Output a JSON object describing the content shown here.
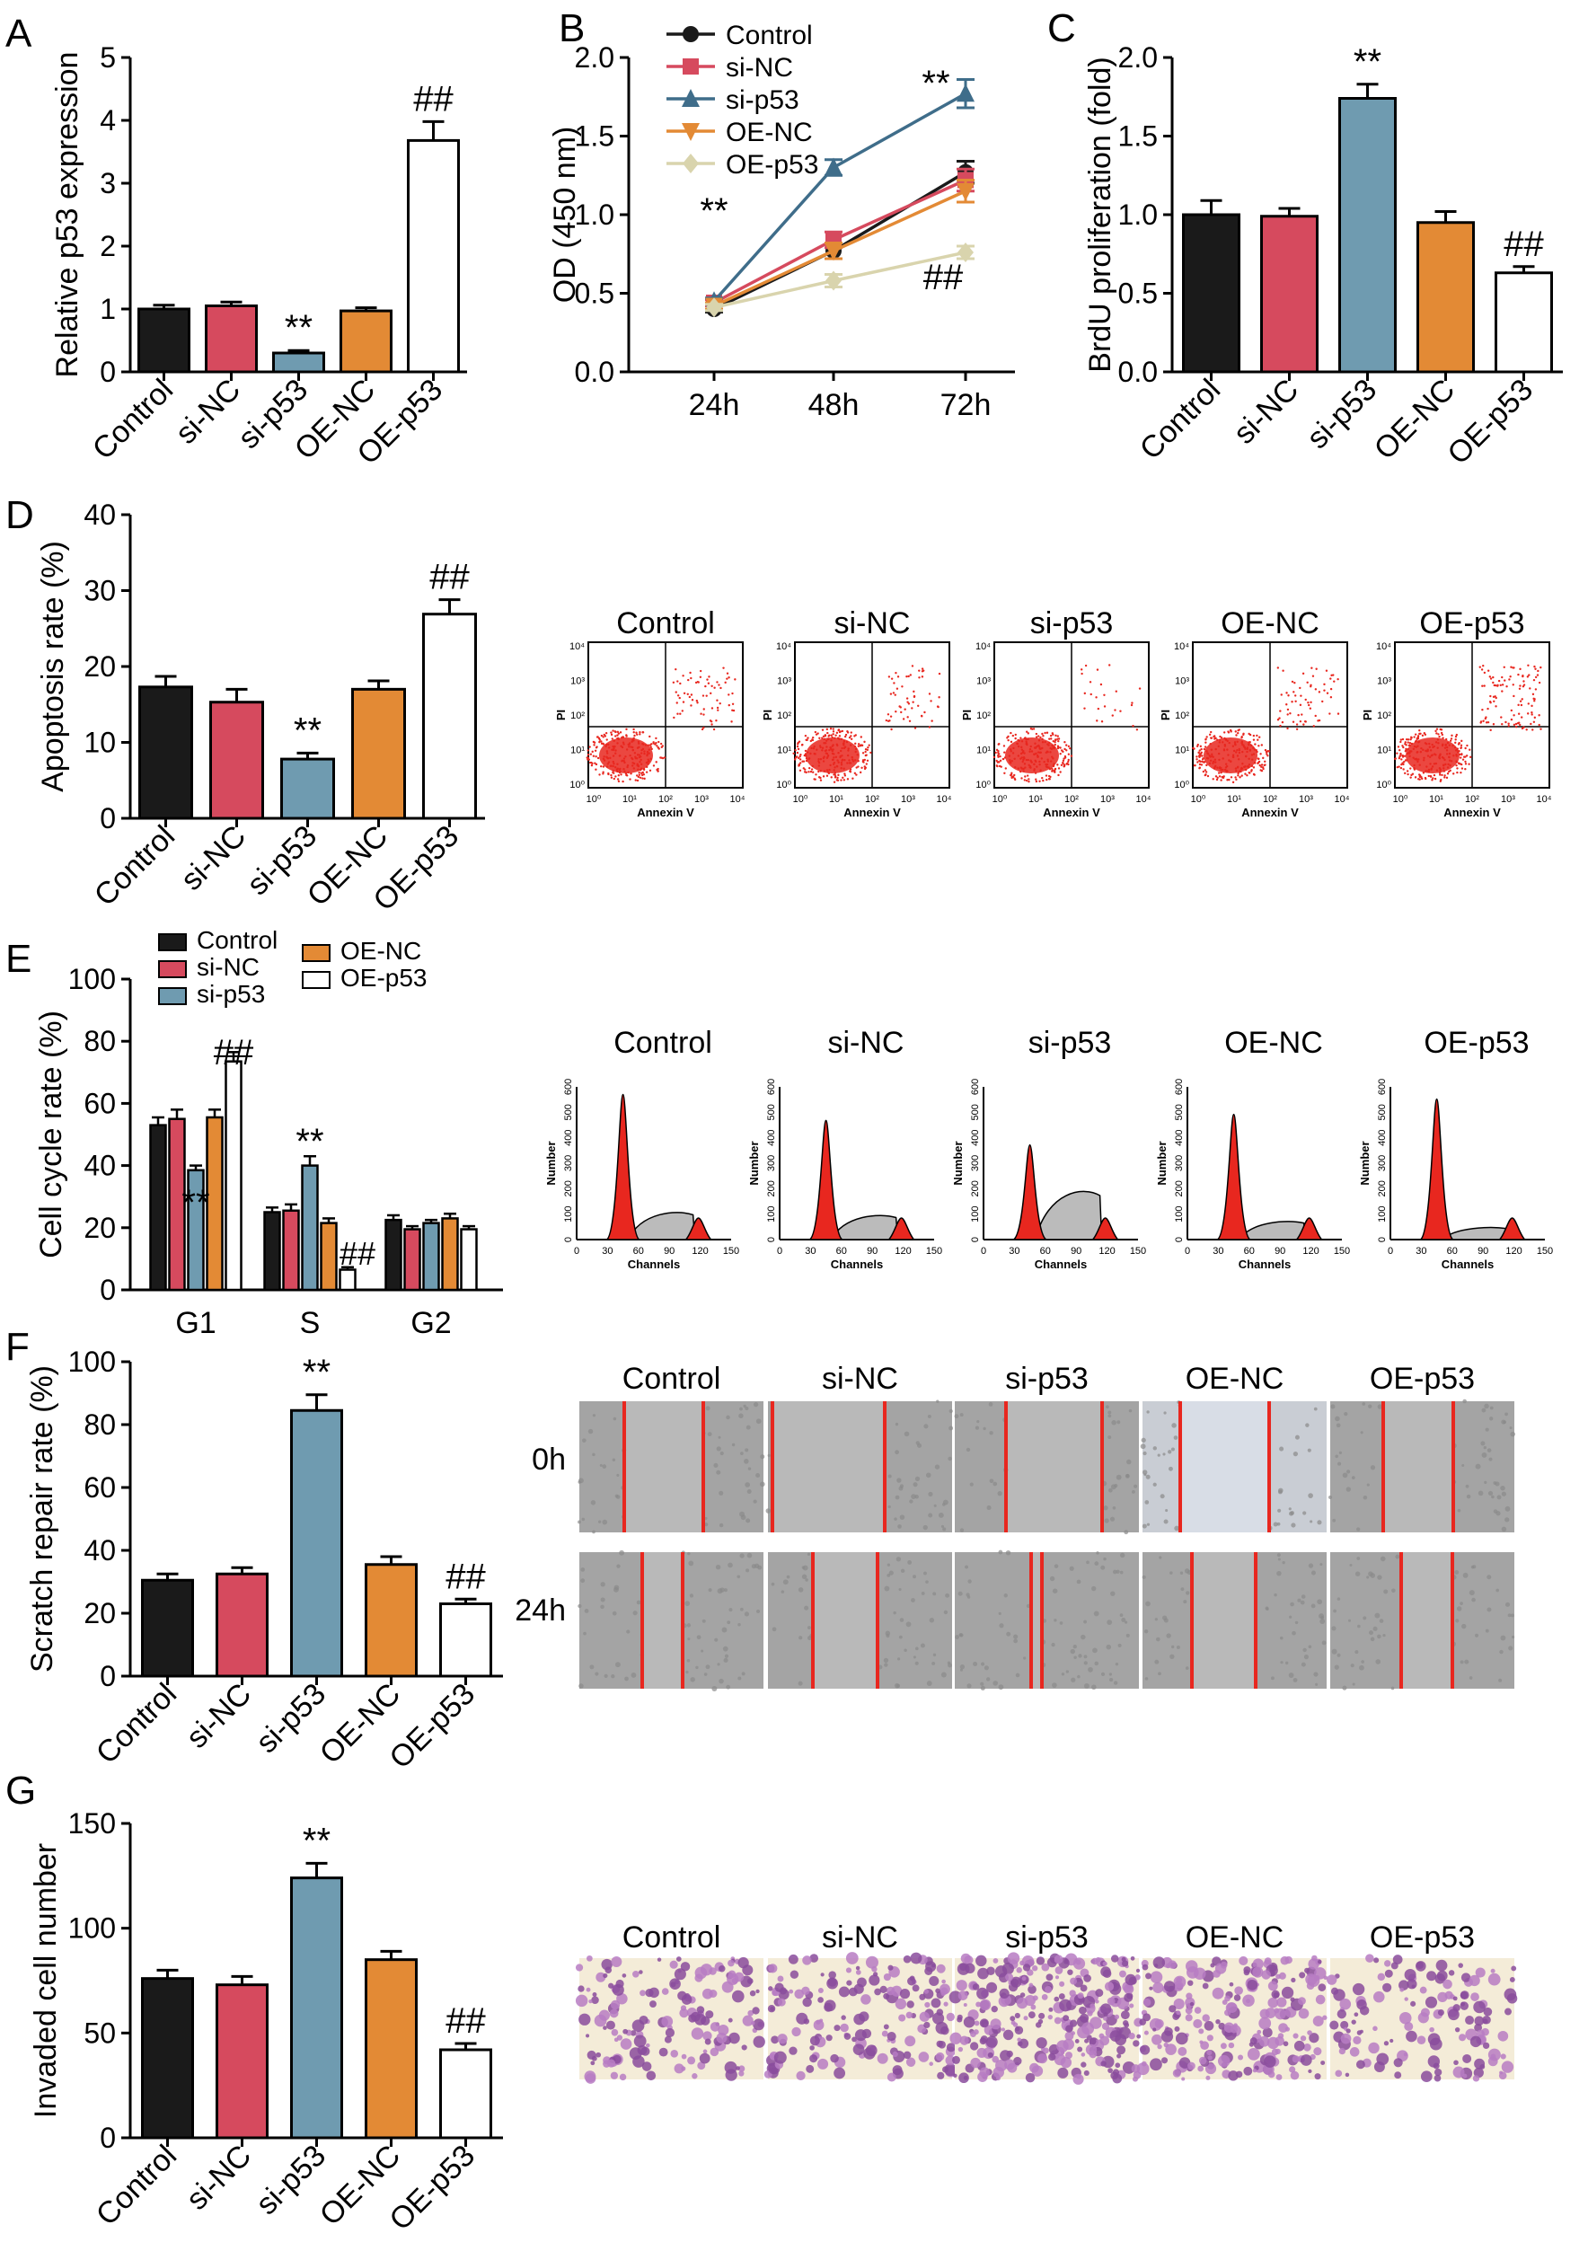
{
  "colors": {
    "Control": "#1a1a1a",
    "si-NC": "#d64a5e",
    "si-p53": "#6f9bb0",
    "OE-NC": "#e38a35",
    "OE-p53": "#ffffff",
    "OE-p53-line": "#d9d4ad",
    "si-p53-line": "#3f6d8a",
    "red-mark": "#e8271f"
  },
  "panels": [
    "A",
    "B",
    "C",
    "D",
    "E",
    "F",
    "G"
  ],
  "chart_data": [
    {
      "id": "A",
      "type": "bar",
      "title": "",
      "xlabel": "",
      "ylabel": "Relative p53 expression",
      "ylim": [
        0,
        5
      ],
      "yticks": [
        0,
        1,
        2,
        3,
        4,
        5
      ],
      "categories": [
        "Control",
        "si-NC",
        "si-p53",
        "OE-NC",
        "OE-p53"
      ],
      "values": [
        1.0,
        1.05,
        0.3,
        0.97,
        3.68
      ],
      "errors": [
        0.06,
        0.06,
        0.04,
        0.05,
        0.3
      ],
      "annotations": [
        "",
        "",
        "**",
        "",
        "##"
      ]
    },
    {
      "id": "B",
      "type": "line",
      "title": "",
      "xlabel": "",
      "ylabel": "OD (450 nm)",
      "ylim": [
        0,
        2.0
      ],
      "yticks": [
        0.0,
        0.5,
        1.0,
        1.5,
        2.0
      ],
      "categories": [
        "24h",
        "48h",
        "72h"
      ],
      "series": [
        {
          "name": "Control",
          "values": [
            0.4,
            0.77,
            1.27
          ],
          "errors": [
            0.02,
            0.05,
            0.07
          ],
          "marker": "circle"
        },
        {
          "name": "si-NC",
          "values": [
            0.44,
            0.84,
            1.22
          ],
          "errors": [
            0.02,
            0.05,
            0.07
          ],
          "marker": "square"
        },
        {
          "name": "si-p53",
          "values": [
            0.45,
            1.3,
            1.77
          ],
          "errors": [
            0.02,
            0.05,
            0.09
          ],
          "marker": "triangle-up"
        },
        {
          "name": "OE-NC",
          "values": [
            0.42,
            0.77,
            1.15
          ],
          "errors": [
            0.02,
            0.05,
            0.07
          ],
          "marker": "triangle-down"
        },
        {
          "name": "OE-p53",
          "values": [
            0.41,
            0.58,
            0.76
          ],
          "errors": [
            0.02,
            0.04,
            0.04
          ],
          "marker": "diamond"
        }
      ],
      "legend": [
        "Control",
        "si-NC",
        "si-p53",
        "OE-NC",
        "OE-p53"
      ],
      "annotations": [
        "**",
        "**",
        "##"
      ]
    },
    {
      "id": "C",
      "type": "bar",
      "title": "",
      "xlabel": "",
      "ylabel": "BrdU proliferation (fold)",
      "ylim": [
        0,
        2.0
      ],
      "yticks": [
        0.0,
        0.5,
        1.0,
        1.5,
        2.0
      ],
      "categories": [
        "Control",
        "si-NC",
        "si-p53",
        "OE-NC",
        "OE-p53"
      ],
      "values": [
        1.0,
        0.99,
        1.74,
        0.95,
        0.63
      ],
      "errors": [
        0.09,
        0.05,
        0.09,
        0.07,
        0.04
      ],
      "annotations": [
        "",
        "",
        "**",
        "",
        "##"
      ]
    },
    {
      "id": "D",
      "type": "bar",
      "title": "",
      "xlabel": "",
      "ylabel": "Apoptosis rate (%)",
      "ylim": [
        0,
        40
      ],
      "yticks": [
        0,
        10,
        20,
        30,
        40
      ],
      "categories": [
        "Control",
        "si-NC",
        "si-p53",
        "OE-NC",
        "OE-p53"
      ],
      "values": [
        17.3,
        15.3,
        7.8,
        17.0,
        26.9
      ],
      "errors": [
        1.4,
        1.7,
        0.8,
        1.1,
        1.9
      ],
      "annotations": [
        "",
        "",
        "**",
        "",
        "##"
      ]
    },
    {
      "id": "D-flow",
      "type": "scatter",
      "title": "",
      "xlabel": "Annexin V",
      "ylabel": "PI",
      "ticks": [
        "10⁰",
        "10¹",
        "10²",
        "10³",
        "10⁴"
      ],
      "panels": [
        "Control",
        "si-NC",
        "si-p53",
        "OE-NC",
        "OE-p53"
      ]
    },
    {
      "id": "E",
      "type": "bar",
      "title": "",
      "xlabel": "",
      "ylabel": "Cell cycle rate (%)",
      "ylim": [
        0,
        100
      ],
      "yticks": [
        0,
        20,
        40,
        60,
        80,
        100
      ],
      "categories": [
        "G1",
        "S",
        "G2"
      ],
      "series": [
        {
          "name": "Control",
          "values": [
            53,
            25,
            22.5
          ],
          "errors": [
            2.5,
            1.5,
            1.5
          ]
        },
        {
          "name": "si-NC",
          "values": [
            55,
            25.5,
            19.5
          ],
          "errors": [
            3,
            2,
            1
          ]
        },
        {
          "name": "si-p53",
          "values": [
            38.5,
            40,
            21.5
          ],
          "errors": [
            1.5,
            3,
            1
          ]
        },
        {
          "name": "OE-NC",
          "values": [
            55.5,
            21.5,
            23
          ],
          "errors": [
            2.5,
            1.5,
            1.5
          ]
        },
        {
          "name": "OE-p53",
          "values": [
            73.5,
            6.5,
            19.5
          ],
          "errors": [
            3,
            0.8,
            1
          ]
        }
      ],
      "legend": [
        "Control",
        "si-NC",
        "si-p53",
        "OE-NC",
        "OE-p53"
      ],
      "annotations": [
        "**",
        "##",
        "**",
        "##"
      ]
    },
    {
      "id": "E-hist",
      "type": "area",
      "title": "",
      "xlabel": "Channels",
      "ylabel": "Number",
      "xticks": [
        "0",
        "30",
        "60",
        "90",
        "120",
        "150"
      ],
      "yticks": [
        "0",
        "100",
        "200",
        "300",
        "400",
        "500",
        "600"
      ],
      "panels": [
        "Control",
        "si-NC",
        "si-p53",
        "OE-NC",
        "OE-p53"
      ]
    },
    {
      "id": "F",
      "type": "bar",
      "title": "",
      "xlabel": "",
      "ylabel": "Scratch repair rate (%)",
      "ylim": [
        0,
        100
      ],
      "yticks": [
        0,
        20,
        40,
        60,
        80,
        100
      ],
      "categories": [
        "Control",
        "si-NC",
        "si-p53",
        "OE-NC",
        "OE-p53"
      ],
      "values": [
        30.5,
        32.5,
        84.5,
        35.5,
        23.0
      ],
      "errors": [
        2,
        2,
        5,
        2.5,
        1.5
      ],
      "annotations": [
        "",
        "",
        "**",
        "",
        "##"
      ],
      "image_columns": [
        "Control",
        "si-NC",
        "si-p53",
        "OE-NC",
        "OE-p53"
      ],
      "image_rows": [
        "0h",
        "24h"
      ]
    },
    {
      "id": "G",
      "type": "bar",
      "title": "",
      "xlabel": "",
      "ylabel": "Invaded cell number",
      "ylim": [
        0,
        150
      ],
      "yticks": [
        0,
        50,
        100,
        150
      ],
      "categories": [
        "Control",
        "si-NC",
        "si-p53",
        "OE-NC",
        "OE-p53"
      ],
      "values": [
        76,
        73,
        124,
        85,
        42
      ],
      "errors": [
        4,
        4,
        7,
        4,
        3
      ],
      "annotations": [
        "",
        "",
        "**",
        "",
        "##"
      ],
      "image_columns": [
        "Control",
        "si-NC",
        "si-p53",
        "OE-NC",
        "OE-p53"
      ]
    }
  ]
}
